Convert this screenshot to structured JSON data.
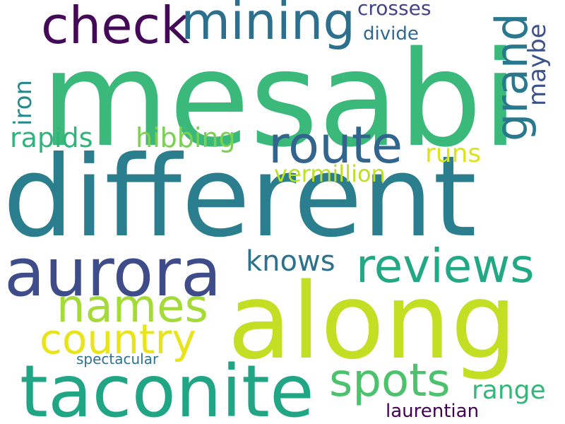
{
  "background": "#ffffff",
  "words": {
    "mesabi": {
      "text": "mesabi",
      "color": "#3bb97a"
    },
    "different": {
      "text": "different",
      "color": "#2a7e8e"
    },
    "along": {
      "text": "along",
      "color": "#c2df23"
    },
    "taconite": {
      "text": "taconite",
      "color": "#20a585"
    },
    "aurora": {
      "text": "aurora",
      "color": "#3e4c8a"
    },
    "check": {
      "text": "check",
      "color": "#440a57"
    },
    "mining": {
      "text": "mining",
      "color": "#2d708e"
    },
    "route": {
      "text": "route",
      "color": "#31658e"
    },
    "reviews": {
      "text": "reviews",
      "color": "#22a884"
    },
    "names": {
      "text": "names",
      "color": "#a5db36"
    },
    "spots": {
      "text": "spots",
      "color": "#4cc26c"
    },
    "country": {
      "text": "country",
      "color": "#e8e419"
    },
    "grand": {
      "text": "grand",
      "color": "#2a788e"
    },
    "maybe": {
      "text": "maybe",
      "color": "#3b528b"
    },
    "iron": {
      "text": "iron",
      "color": "#23898e"
    },
    "rapids": {
      "text": "rapids",
      "color": "#2fb47c"
    },
    "hibbing": {
      "text": "hibbing",
      "color": "#7ad151"
    },
    "knows": {
      "text": "knows",
      "color": "#2c728e"
    },
    "runs": {
      "text": "runs",
      "color": "#dde318"
    },
    "vermillion": {
      "text": "vermillion",
      "color": "#bddf26"
    },
    "crosses": {
      "text": "crosses",
      "color": "#414487"
    },
    "divide": {
      "text": "divide",
      "color": "#31688e"
    },
    "range": {
      "text": "range",
      "color": "#35b779"
    },
    "laurentian": {
      "text": "laurentian",
      "color": "#440154"
    },
    "spectacular": {
      "text": "spectacular",
      "color": "#2c728e"
    }
  }
}
